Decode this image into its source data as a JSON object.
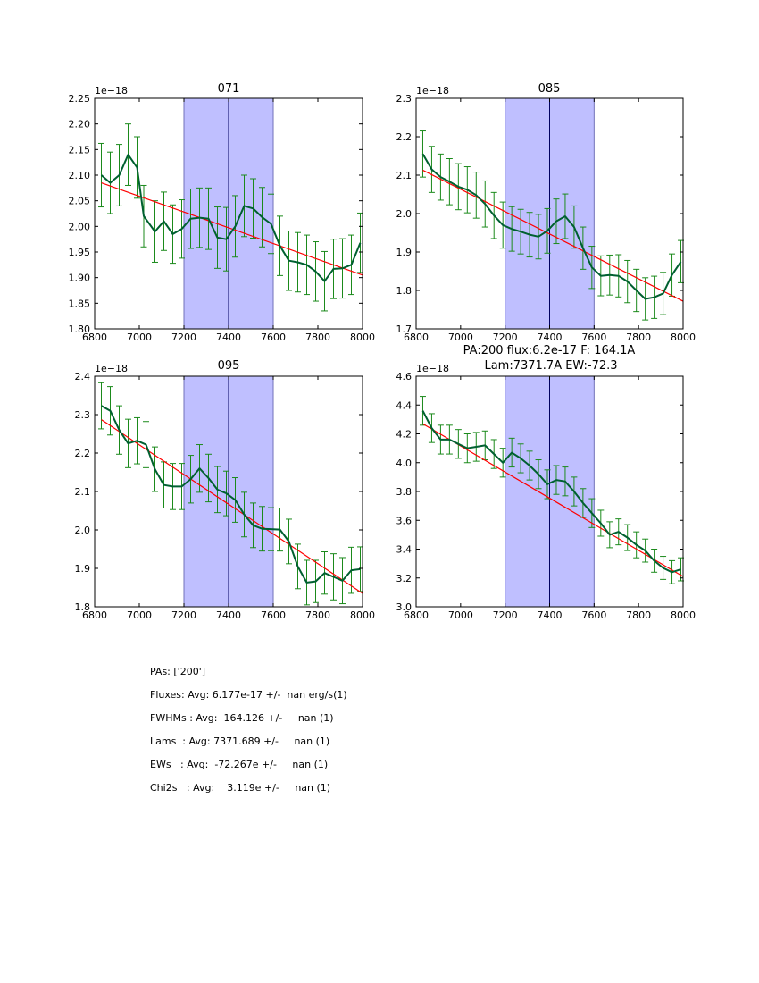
{
  "colors": {
    "band": "#bfbfff",
    "band_edge": "#7070b8",
    "vline": "#000060",
    "data_line": "#006030",
    "error_bar": "#1b8a1b",
    "fit_line": "#ff0000",
    "axes": "#000000"
  },
  "stats": {
    "lines": [
      "PAs: ['200']",
      "Fluxes: Avg: 6.177e-17 +/-  nan erg/s(1)",
      "FWHMs : Avg:  164.126 +/-     nan (1)",
      "Lams  : Avg: 7371.689 +/-     nan (1)",
      "EWs   : Avg:  -72.267e +/-     nan (1)",
      "Chi2s   : Avg:    3.119e +/-     nan (1)"
    ]
  },
  "chart_data": [
    {
      "type": "line",
      "title": "071",
      "offset_label": "1e−18",
      "xlim": [
        6800,
        8000
      ],
      "ylim": [
        1.8,
        2.25
      ],
      "xticks": [
        6800,
        7000,
        7200,
        7400,
        7600,
        7800,
        8000
      ],
      "yticks": [
        1.8,
        1.85,
        1.9,
        1.95,
        2.0,
        2.05,
        2.1,
        2.15,
        2.2,
        2.25
      ],
      "ytick_labels": [
        "1.80",
        "1.85",
        "1.90",
        "1.95",
        "2.00",
        "2.05",
        "2.10",
        "2.15",
        "2.20",
        "2.25"
      ],
      "band": [
        7200,
        7600
      ],
      "vline": 7400,
      "x": [
        6830,
        6870,
        6910,
        6950,
        6990,
        7020,
        7070,
        7110,
        7150,
        7190,
        7230,
        7270,
        7310,
        7350,
        7390,
        7430,
        7470,
        7510,
        7550,
        7590,
        7630,
        7670,
        7710,
        7750,
        7790,
        7830,
        7870,
        7910,
        7950,
        7990
      ],
      "y": [
        2.1,
        2.085,
        2.1,
        2.14,
        2.115,
        2.02,
        1.99,
        2.01,
        1.985,
        1.995,
        2.015,
        2.017,
        2.015,
        1.978,
        1.975,
        2.0,
        2.04,
        2.035,
        2.018,
        2.005,
        1.962,
        1.933,
        1.93,
        1.925,
        1.912,
        1.893,
        1.917,
        1.918,
        1.925,
        1.968
      ],
      "err": [
        0.062,
        0.06,
        0.06,
        0.06,
        0.06,
        0.06,
        0.06,
        0.057,
        0.057,
        0.057,
        0.058,
        0.058,
        0.06,
        0.06,
        0.062,
        0.06,
        0.06,
        0.058,
        0.058,
        0.058,
        0.058,
        0.058,
        0.058,
        0.058,
        0.058,
        0.058,
        0.058,
        0.058,
        0.058,
        0.058
      ],
      "fit": [
        [
          6830,
          2.085
        ],
        [
          8000,
          1.905
        ]
      ]
    },
    {
      "type": "line",
      "title": "085",
      "offset_label": "1e−18",
      "xlim": [
        6800,
        8000
      ],
      "ylim": [
        1.7,
        2.3
      ],
      "xticks": [
        6800,
        7000,
        7200,
        7400,
        7600,
        7800,
        8000
      ],
      "yticks": [
        1.7,
        1.8,
        1.9,
        2.0,
        2.1,
        2.2,
        2.3
      ],
      "ytick_labels": [
        "1.7",
        "1.8",
        "1.9",
        "2.0",
        "2.1",
        "2.2",
        "2.3"
      ],
      "band": [
        7200,
        7600
      ],
      "vline": 7400,
      "x": [
        6830,
        6870,
        6910,
        6950,
        6990,
        7030,
        7070,
        7110,
        7150,
        7190,
        7230,
        7270,
        7310,
        7350,
        7390,
        7430,
        7470,
        7510,
        7550,
        7590,
        7630,
        7670,
        7710,
        7750,
        7790,
        7830,
        7870,
        7910,
        7950,
        7990
      ],
      "y": [
        2.155,
        2.115,
        2.095,
        2.083,
        2.07,
        2.062,
        2.048,
        2.025,
        1.995,
        1.97,
        1.96,
        1.953,
        1.945,
        1.94,
        1.955,
        1.98,
        1.993,
        1.965,
        1.91,
        1.86,
        1.838,
        1.84,
        1.838,
        1.823,
        1.8,
        1.778,
        1.782,
        1.792,
        1.84,
        1.875
      ],
      "err": [
        0.06,
        0.06,
        0.06,
        0.06,
        0.06,
        0.06,
        0.06,
        0.06,
        0.06,
        0.06,
        0.058,
        0.058,
        0.058,
        0.058,
        0.058,
        0.058,
        0.058,
        0.055,
        0.055,
        0.055,
        0.052,
        0.052,
        0.055,
        0.055,
        0.055,
        0.055,
        0.055,
        0.055,
        0.055,
        0.055
      ],
      "fit": [
        [
          6830,
          2.113
        ],
        [
          8000,
          1.772
        ]
      ]
    },
    {
      "type": "line",
      "title": "095",
      "offset_label": "1e−18",
      "xlim": [
        6800,
        8000
      ],
      "ylim": [
        1.8,
        2.4
      ],
      "xticks": [
        6800,
        7000,
        7200,
        7400,
        7600,
        7800,
        8000
      ],
      "yticks": [
        1.8,
        1.9,
        2.0,
        2.1,
        2.2,
        2.3,
        2.4
      ],
      "ytick_labels": [
        "1.8",
        "1.9",
        "2.0",
        "2.1",
        "2.2",
        "2.3",
        "2.4"
      ],
      "band": [
        7200,
        7600
      ],
      "vline": 7400,
      "x": [
        6830,
        6870,
        6910,
        6950,
        6990,
        7030,
        7070,
        7110,
        7150,
        7190,
        7230,
        7270,
        7310,
        7350,
        7390,
        7430,
        7470,
        7510,
        7550,
        7590,
        7630,
        7670,
        7710,
        7750,
        7790,
        7830,
        7870,
        7910,
        7950,
        7990
      ],
      "y": [
        2.323,
        2.31,
        2.26,
        2.225,
        2.232,
        2.222,
        2.158,
        2.117,
        2.113,
        2.113,
        2.132,
        2.16,
        2.135,
        2.105,
        2.095,
        2.078,
        2.04,
        2.012,
        2.003,
        2.002,
        2.001,
        1.97,
        1.905,
        1.863,
        1.866,
        1.888,
        1.878,
        1.868,
        1.895,
        1.898
      ],
      "err": [
        0.06,
        0.063,
        0.063,
        0.063,
        0.06,
        0.06,
        0.058,
        0.06,
        0.06,
        0.06,
        0.062,
        0.062,
        0.062,
        0.06,
        0.058,
        0.058,
        0.058,
        0.058,
        0.058,
        0.056,
        0.056,
        0.058,
        0.058,
        0.058,
        0.055,
        0.055,
        0.06,
        0.06,
        0.06,
        0.058
      ],
      "fit": [
        [
          6830,
          2.287
        ],
        [
          8000,
          1.835
        ]
      ]
    },
    {
      "type": "line",
      "title": "PA:200 flux:6.2e-17 F: 164.1A\nLam:7371.7A EW:-72.3",
      "title_lines": [
        "PA:200 flux:6.2e-17 F: 164.1A",
        "Lam:7371.7A EW:-72.3"
      ],
      "offset_label": "1e−18",
      "xlim": [
        6800,
        8000
      ],
      "ylim": [
        3.0,
        4.6
      ],
      "xticks": [
        6800,
        7000,
        7200,
        7400,
        7600,
        7800,
        8000
      ],
      "yticks": [
        3.0,
        3.2,
        3.4,
        3.6,
        3.8,
        4.0,
        4.2,
        4.4,
        4.6
      ],
      "ytick_labels": [
        "3.0",
        "3.2",
        "3.4",
        "3.6",
        "3.8",
        "4.0",
        "4.2",
        "4.4",
        "4.6"
      ],
      "band": [
        7200,
        7600
      ],
      "vline": 7400,
      "x": [
        6830,
        6870,
        6910,
        6950,
        6990,
        7030,
        7070,
        7110,
        7150,
        7190,
        7230,
        7270,
        7310,
        7350,
        7390,
        7430,
        7470,
        7510,
        7550,
        7590,
        7630,
        7670,
        7710,
        7750,
        7790,
        7830,
        7870,
        7910,
        7950,
        7990
      ],
      "y": [
        4.36,
        4.24,
        4.16,
        4.16,
        4.13,
        4.1,
        4.11,
        4.12,
        4.06,
        4.0,
        4.07,
        4.03,
        3.98,
        3.92,
        3.85,
        3.88,
        3.87,
        3.8,
        3.72,
        3.65,
        3.58,
        3.5,
        3.52,
        3.48,
        3.43,
        3.39,
        3.32,
        3.27,
        3.24,
        3.26
      ],
      "err": [
        0.1,
        0.1,
        0.1,
        0.1,
        0.1,
        0.1,
        0.1,
        0.1,
        0.1,
        0.1,
        0.1,
        0.1,
        0.1,
        0.1,
        0.1,
        0.1,
        0.1,
        0.1,
        0.1,
        0.1,
        0.09,
        0.09,
        0.09,
        0.09,
        0.09,
        0.08,
        0.08,
        0.08,
        0.08,
        0.08
      ],
      "fit": [
        [
          6830,
          4.27
        ],
        [
          8000,
          3.21
        ]
      ]
    }
  ]
}
